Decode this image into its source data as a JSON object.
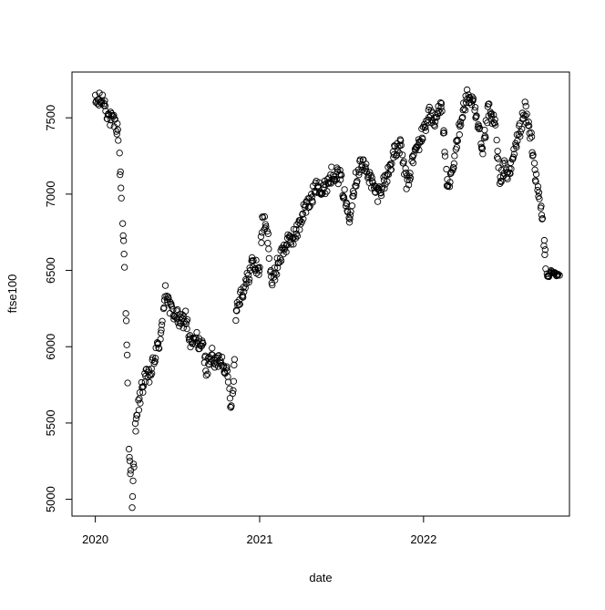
{
  "chart_data": {
    "type": "scatter",
    "title": "",
    "xlabel": "date",
    "ylabel": "ftse100",
    "x_tick_labels": [
      "2020",
      "2021",
      "2022"
    ],
    "y_tick_labels": [
      "5000",
      "5500",
      "6000",
      "6500",
      "7000",
      "7500"
    ],
    "x_ticks": [
      "2020-01-01",
      "2021-01-01",
      "2022-01-01"
    ],
    "y_ticks": [
      5000,
      5500,
      6000,
      6500,
      7000,
      7500
    ],
    "xlim": [
      "2019-11-10",
      "2022-11-22"
    ],
    "ylim": [
      4890,
      7800
    ],
    "grid": false,
    "marker": "open-circle",
    "color": "#000000",
    "anchors": [
      [
        "2020-01-01",
        7600
      ],
      [
        "2020-01-10",
        7610
      ],
      [
        "2020-01-20",
        7620
      ],
      [
        "2020-01-31",
        7500
      ],
      [
        "2020-02-10",
        7470
      ],
      [
        "2020-02-20",
        7430
      ],
      [
        "2020-02-26",
        7120
      ],
      [
        "2020-03-02",
        6800
      ],
      [
        "2020-03-07",
        6500
      ],
      [
        "2020-03-12",
        5900
      ],
      [
        "2020-03-16",
        5300
      ],
      [
        "2020-03-20",
        5150
      ],
      [
        "2020-03-23",
        5000
      ],
      [
        "2020-03-30",
        5450
      ],
      [
        "2020-04-08",
        5650
      ],
      [
        "2020-04-20",
        5800
      ],
      [
        "2020-05-01",
        5800
      ],
      [
        "2020-05-15",
        5950
      ],
      [
        "2020-05-28",
        6100
      ],
      [
        "2020-06-05",
        6400
      ],
      [
        "2020-06-15",
        6250
      ],
      [
        "2020-06-30",
        6200
      ],
      [
        "2020-07-10",
        6150
      ],
      [
        "2020-07-20",
        6200
      ],
      [
        "2020-08-01",
        6000
      ],
      [
        "2020-08-15",
        6050
      ],
      [
        "2020-08-28",
        5980
      ],
      [
        "2020-09-05",
        5850
      ],
      [
        "2020-09-15",
        5950
      ],
      [
        "2020-09-25",
        5880
      ],
      [
        "2020-10-05",
        5930
      ],
      [
        "2020-10-15",
        5880
      ],
      [
        "2020-10-23",
        5780
      ],
      [
        "2020-10-30",
        5600
      ],
      [
        "2020-11-05",
        5850
      ],
      [
        "2020-11-10",
        6250
      ],
      [
        "2020-11-20",
        6350
      ],
      [
        "2020-12-01",
        6400
      ],
      [
        "2020-12-15",
        6550
      ],
      [
        "2020-12-31",
        6500
      ],
      [
        "2021-01-08",
        6850
      ],
      [
        "2021-01-20",
        6700
      ],
      [
        "2021-01-29",
        6400
      ],
      [
        "2021-02-10",
        6550
      ],
      [
        "2021-02-25",
        6650
      ],
      [
        "2021-03-10",
        6700
      ],
      [
        "2021-03-25",
        6750
      ],
      [
        "2021-04-10",
        6900
      ],
      [
        "2021-04-25",
        6950
      ],
      [
        "2021-05-10",
        7100
      ],
      [
        "2021-05-20",
        7000
      ],
      [
        "2021-06-01",
        7080
      ],
      [
        "2021-06-15",
        7150
      ],
      [
        "2021-06-30",
        7100
      ],
      [
        "2021-07-19",
        6850
      ],
      [
        "2021-07-30",
        7050
      ],
      [
        "2021-08-13",
        7200
      ],
      [
        "2021-08-30",
        7150
      ],
      [
        "2021-09-10",
        7050
      ],
      [
        "2021-09-20",
        7000
      ],
      [
        "2021-09-30",
        7050
      ],
      [
        "2021-10-10",
        7100
      ],
      [
        "2021-10-25",
        7250
      ],
      [
        "2021-11-10",
        7320
      ],
      [
        "2021-11-26",
        7050
      ],
      [
        "2021-12-10",
        7250
      ],
      [
        "2021-12-31",
        7400
      ],
      [
        "2022-01-15",
        7550
      ],
      [
        "2022-01-25",
        7450
      ],
      [
        "2022-02-10",
        7620
      ],
      [
        "2022-02-24",
        7000
      ],
      [
        "2022-03-10",
        7200
      ],
      [
        "2022-03-25",
        7500
      ],
      [
        "2022-04-10",
        7650
      ],
      [
        "2022-04-20",
        7600
      ],
      [
        "2022-05-05",
        7400
      ],
      [
        "2022-05-12",
        7250
      ],
      [
        "2022-05-25",
        7550
      ],
      [
        "2022-06-10",
        7450
      ],
      [
        "2022-06-20",
        7050
      ],
      [
        "2022-06-30",
        7200
      ],
      [
        "2022-07-10",
        7100
      ],
      [
        "2022-07-20",
        7250
      ],
      [
        "2022-08-01",
        7400
      ],
      [
        "2022-08-15",
        7550
      ],
      [
        "2022-08-30",
        7350
      ],
      [
        "2022-09-10",
        7050
      ],
      [
        "2022-09-20",
        6900
      ],
      [
        "2022-09-26",
        6700
      ],
      [
        "2022-10-03",
        6450
      ],
      [
        "2022-10-12",
        6490
      ],
      [
        "2022-10-24",
        6470
      ],
      [
        "2022-10-31",
        6470
      ]
    ]
  }
}
